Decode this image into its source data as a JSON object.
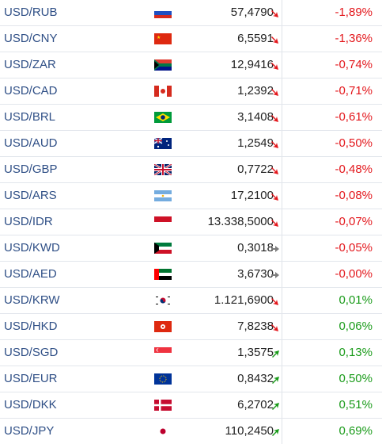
{
  "colors": {
    "negative": "#e3161b",
    "positive": "#1a9b1a",
    "link": "#2f4f86",
    "neutral_arrow": "#7d7d7d"
  },
  "rows": [
    {
      "pair": "USD/RUB",
      "flag": "ru-flag-icon",
      "price": "57,4790",
      "trend": "down",
      "change": "-1,89%"
    },
    {
      "pair": "USD/CNY",
      "flag": "cn-flag-icon",
      "price": "6,5591",
      "trend": "down",
      "change": "-1,36%"
    },
    {
      "pair": "USD/ZAR",
      "flag": "za-flag-icon",
      "price": "12,9416",
      "trend": "down",
      "change": "-0,74%"
    },
    {
      "pair": "USD/CAD",
      "flag": "ca-flag-icon",
      "price": "1,2392",
      "trend": "down",
      "change": "-0,71%"
    },
    {
      "pair": "USD/BRL",
      "flag": "br-flag-icon",
      "price": "3,1408",
      "trend": "down",
      "change": "-0,61%"
    },
    {
      "pair": "USD/AUD",
      "flag": "au-flag-icon",
      "price": "1,2549",
      "trend": "down",
      "change": "-0,50%"
    },
    {
      "pair": "USD/GBP",
      "flag": "gb-flag-icon",
      "price": "0,7722",
      "trend": "down",
      "change": "-0,48%"
    },
    {
      "pair": "USD/ARS",
      "flag": "ar-flag-icon",
      "price": "17,2100",
      "trend": "down",
      "change": "-0,08%"
    },
    {
      "pair": "USD/IDR",
      "flag": "id-flag-icon",
      "price": "13.338,5000",
      "trend": "down",
      "change": "-0,07%"
    },
    {
      "pair": "USD/KWD",
      "flag": "kw-flag-icon",
      "price": "0,3018",
      "trend": "flat",
      "change": "-0,05%"
    },
    {
      "pair": "USD/AED",
      "flag": "ae-flag-icon",
      "price": "3,6730",
      "trend": "flat",
      "change": "-0,00%"
    },
    {
      "pair": "USD/KRW",
      "flag": "kr-flag-icon",
      "price": "1.121,6900",
      "trend": "down",
      "change": "0,01%"
    },
    {
      "pair": "USD/HKD",
      "flag": "hk-flag-icon",
      "price": "7,8238",
      "trend": "down",
      "change": "0,06%"
    },
    {
      "pair": "USD/SGD",
      "flag": "sg-flag-icon",
      "price": "1,3575",
      "trend": "up",
      "change": "0,13%"
    },
    {
      "pair": "USD/EUR",
      "flag": "eu-flag-icon",
      "price": "0,8432",
      "trend": "up",
      "change": "0,50%"
    },
    {
      "pair": "USD/DKK",
      "flag": "dk-flag-icon",
      "price": "6,2702",
      "trend": "up",
      "change": "0,51%"
    },
    {
      "pair": "USD/JPY",
      "flag": "jp-flag-icon",
      "price": "110,2450",
      "trend": "up",
      "change": "0,69%"
    }
  ]
}
